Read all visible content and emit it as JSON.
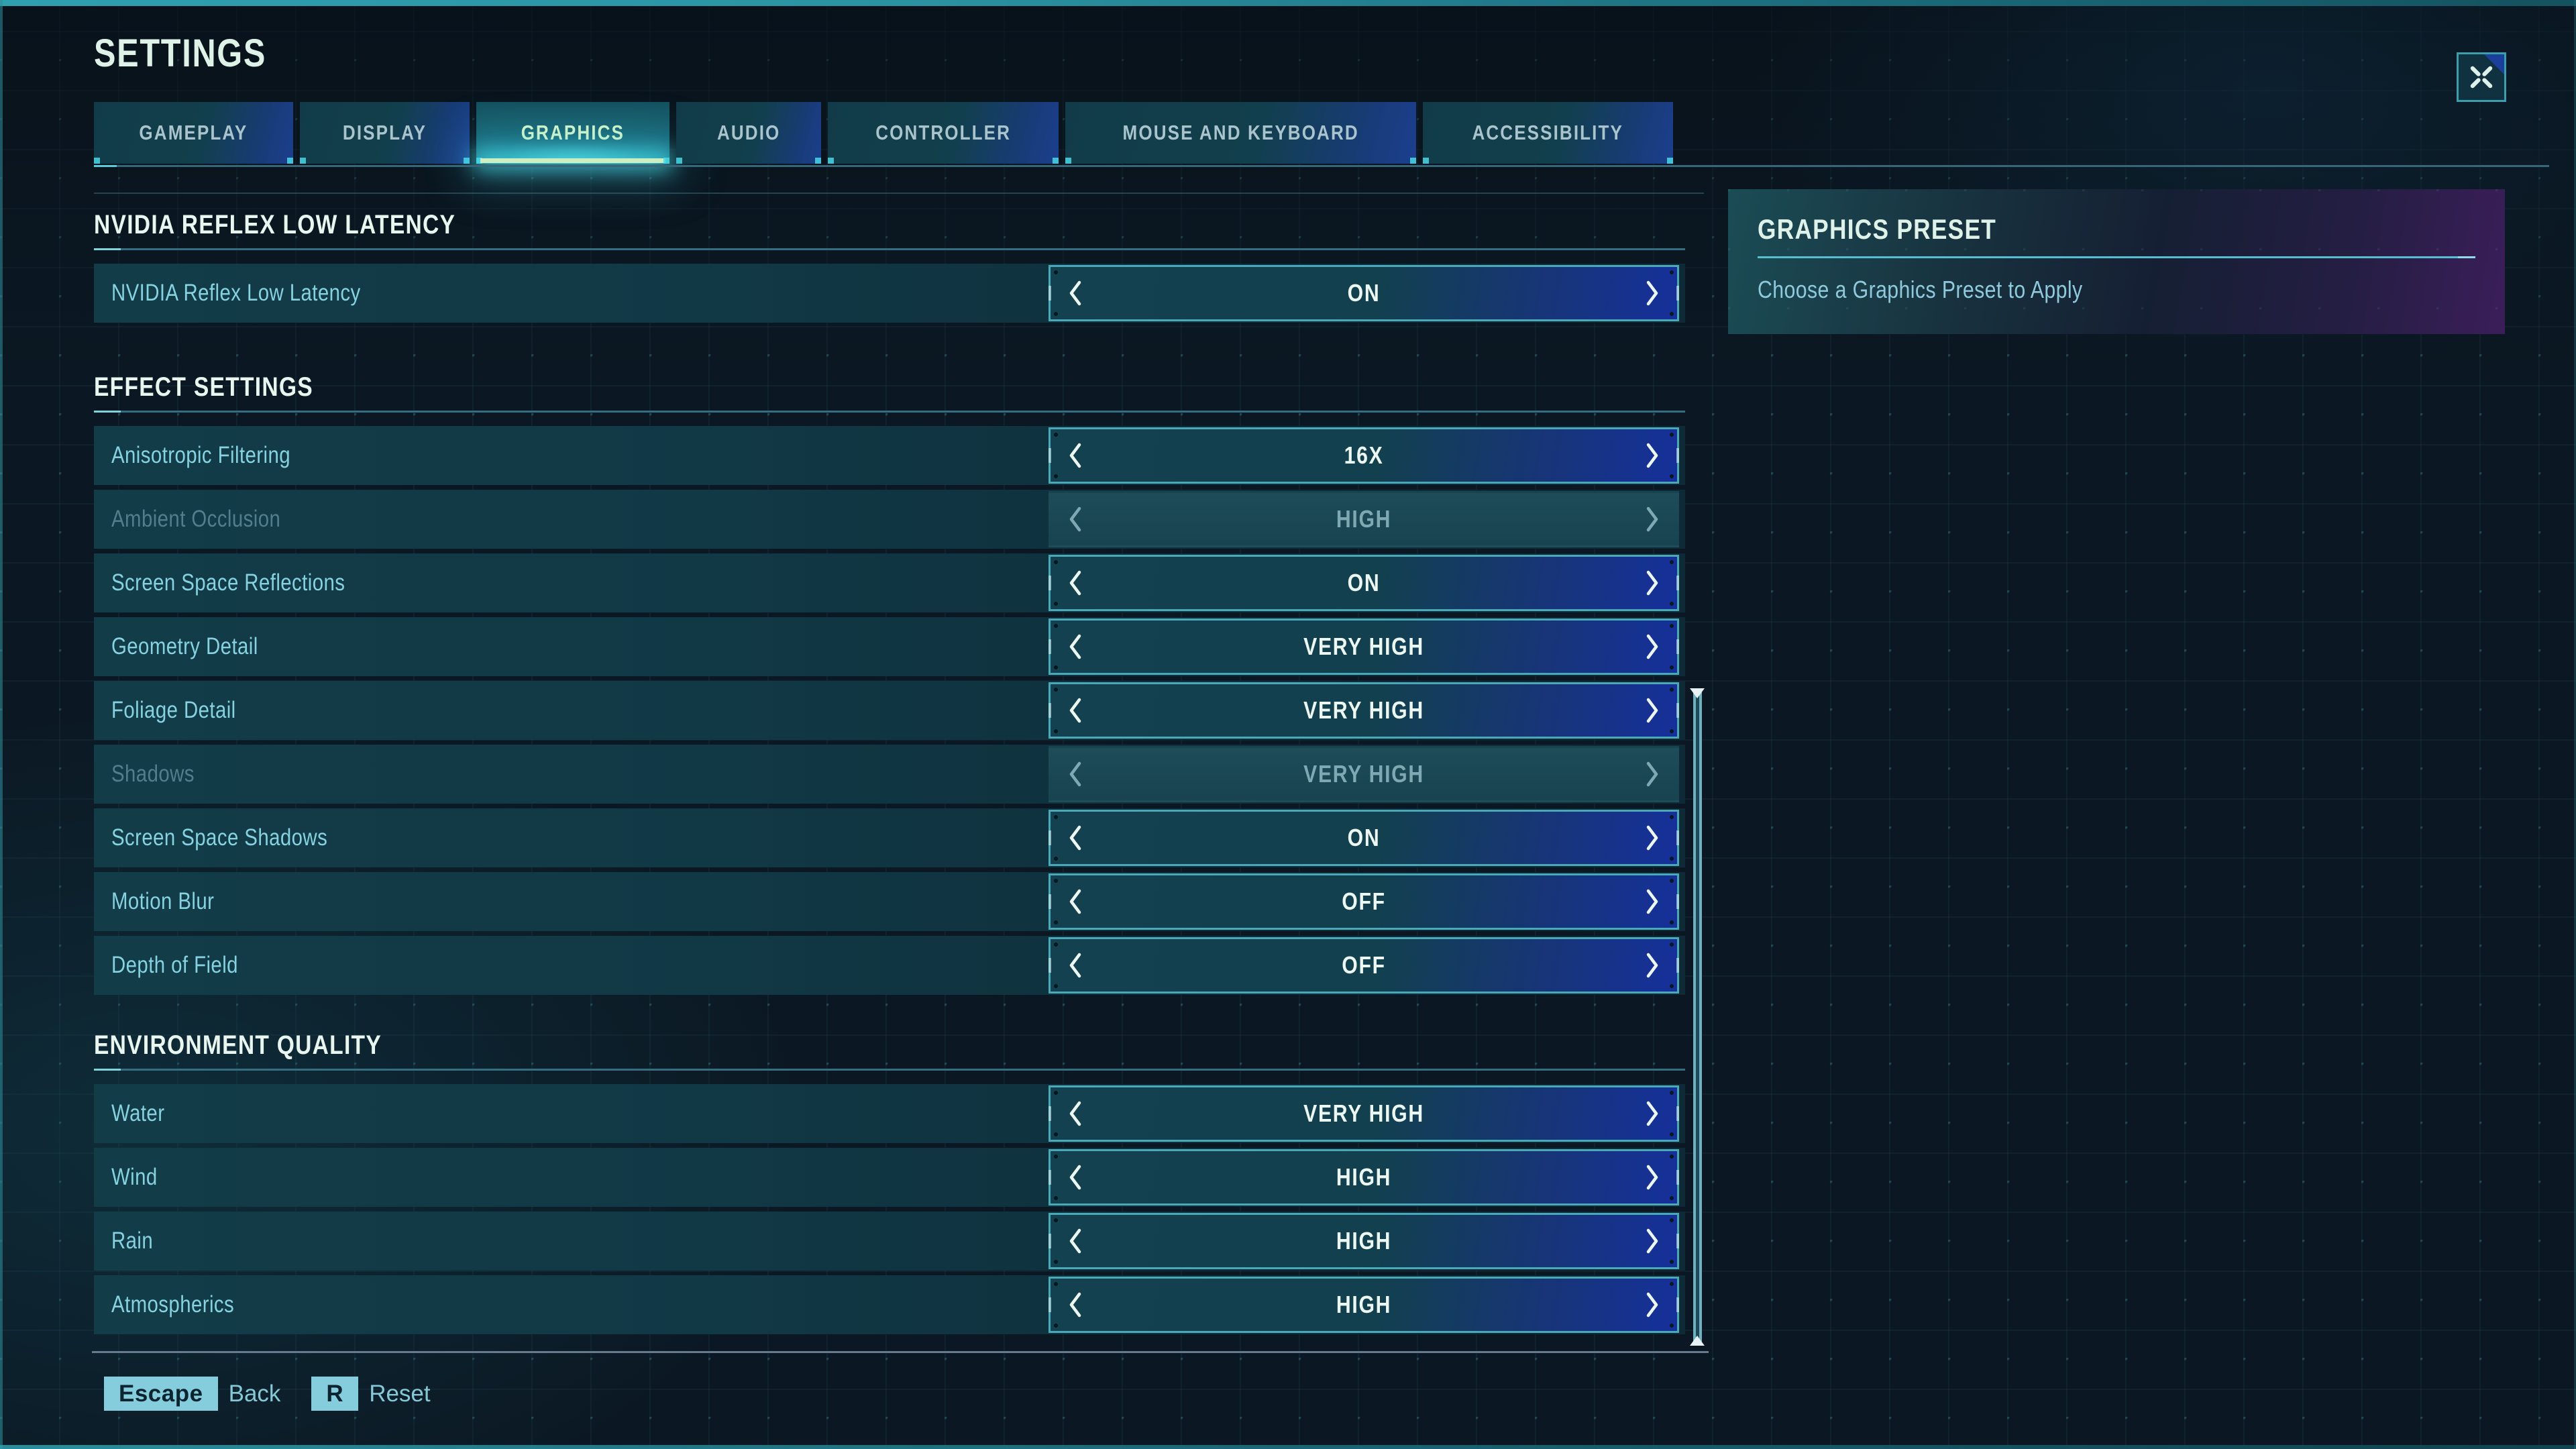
{
  "page": {
    "title": "SETTINGS"
  },
  "header": {
    "expand_button_icon": "expand-collapse-x-icon"
  },
  "tabs": [
    {
      "label": "GAMEPLAY",
      "active": false
    },
    {
      "label": "DISPLAY",
      "active": false
    },
    {
      "label": "GRAPHICS",
      "active": true
    },
    {
      "label": "AUDIO",
      "active": false
    },
    {
      "label": "CONTROLLER",
      "active": false
    },
    {
      "label": "MOUSE AND KEYBOARD",
      "active": false
    },
    {
      "label": "ACCESSIBILITY",
      "active": false
    }
  ],
  "sections": [
    {
      "title": "NVIDIA REFLEX LOW LATENCY",
      "rows": [
        {
          "label": "NVIDIA Reflex Low Latency",
          "value": "ON",
          "disabled": false
        }
      ]
    },
    {
      "title": "EFFECT SETTINGS",
      "rows": [
        {
          "label": "Anisotropic Filtering",
          "value": "16X",
          "disabled": false
        },
        {
          "label": "Ambient Occlusion",
          "value": "HIGH",
          "disabled": true
        },
        {
          "label": "Screen Space Reflections",
          "value": "ON",
          "disabled": false
        },
        {
          "label": "Geometry Detail",
          "value": "VERY HIGH",
          "disabled": false
        },
        {
          "label": "Foliage Detail",
          "value": "VERY HIGH",
          "disabled": false
        },
        {
          "label": "Shadows",
          "value": "VERY HIGH",
          "disabled": true
        },
        {
          "label": "Screen Space Shadows",
          "value": "ON",
          "disabled": false
        },
        {
          "label": "Motion Blur",
          "value": "OFF",
          "disabled": false
        },
        {
          "label": "Depth of Field",
          "value": "OFF",
          "disabled": false
        }
      ]
    },
    {
      "title": "ENVIRONMENT QUALITY",
      "rows": [
        {
          "label": "Water",
          "value": "VERY HIGH",
          "disabled": false
        },
        {
          "label": "Wind",
          "value": "HIGH",
          "disabled": false
        },
        {
          "label": "Rain",
          "value": "HIGH",
          "disabled": false
        },
        {
          "label": "Atmospherics",
          "value": "HIGH",
          "disabled": false
        }
      ]
    }
  ],
  "preset_panel": {
    "title": "GRAPHICS PRESET",
    "description": "Choose a Graphics Preset to Apply"
  },
  "footer": {
    "hints": [
      {
        "key": "Escape",
        "label": "Back"
      },
      {
        "key": "R",
        "label": "Reset"
      }
    ]
  },
  "colors": {
    "background": "#0b1823",
    "selector_border_teal": "#49a9b8",
    "selector_blue": "#16309b",
    "row_bg_teal": "#113845",
    "label_text": "#86d2e0",
    "value_text": "#ebf7f0",
    "disabled_text": "#7fa9b2",
    "active_tab_text": "#d9f3c7",
    "active_tab_underline": "#cdeec1",
    "glow_cyan": "#48e2f0",
    "key_badge_bg": "#85cddd",
    "key_badge_text": "#0c2330",
    "panel_purple": "#3b1e59",
    "section_title_text": "#e8f6ef"
  }
}
